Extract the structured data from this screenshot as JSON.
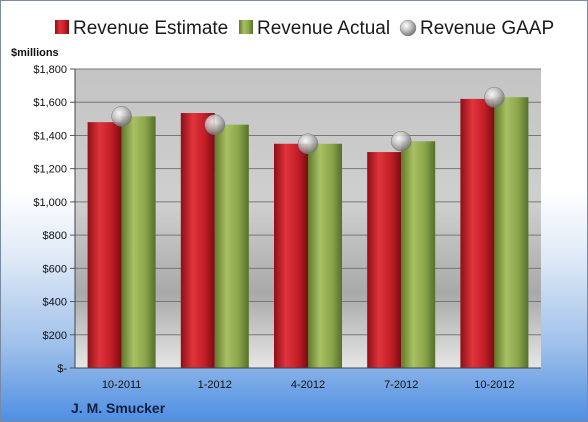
{
  "company": "J. M. Smucker",
  "colors": {
    "estimate": "#c8202a",
    "actual": "#8faa4a",
    "gaap": "#b8b8b8"
  },
  "chart_data": {
    "type": "bar",
    "categories": [
      "10-2011",
      "1-2012",
      "4-2012",
      "7-2012",
      "10-2012"
    ],
    "series": [
      {
        "name": "Revenue Estimate",
        "values": [
          1480,
          1535,
          1350,
          1300,
          1620
        ]
      },
      {
        "name": "Revenue Actual",
        "values": [
          1515,
          1465,
          1350,
          1365,
          1630
        ]
      },
      {
        "name": "Revenue GAAP",
        "values": [
          1515,
          1465,
          1350,
          1365,
          1630
        ]
      }
    ],
    "ylabel": "$millions",
    "ylim": [
      0,
      1800
    ],
    "yticks": [
      0,
      200,
      400,
      600,
      800,
      1000,
      1200,
      1400,
      1600,
      1800
    ],
    "ytick_labels": [
      "$-",
      "$200",
      "$400",
      "$600",
      "$800",
      "$1,000",
      "$1,200",
      "$1,400",
      "$1,600",
      "$1,800"
    ],
    "grid": true,
    "legend": "top"
  }
}
